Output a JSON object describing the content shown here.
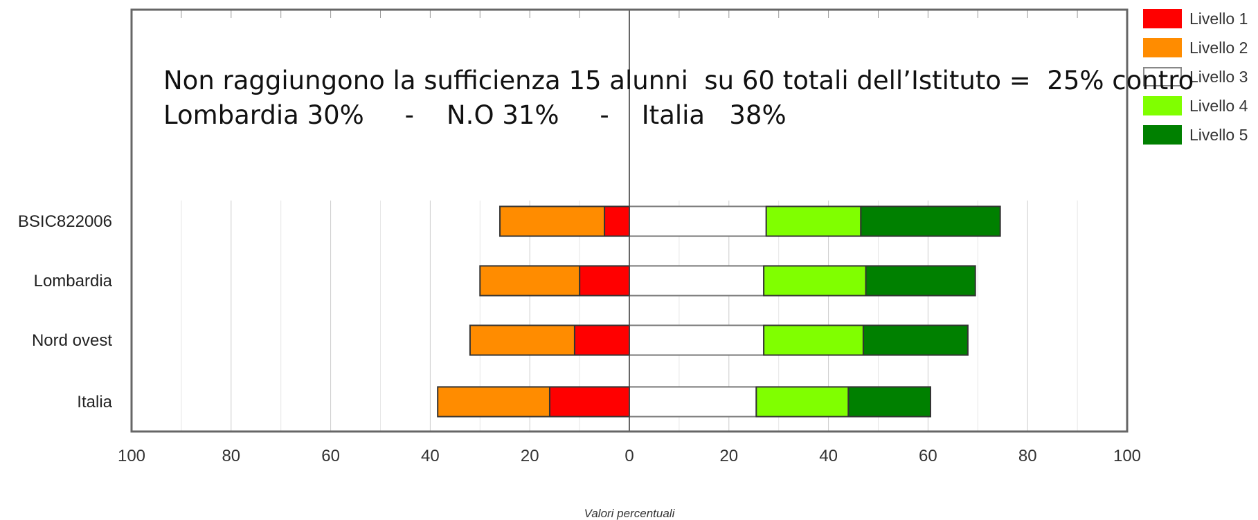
{
  "annotation": {
    "line1": "Non raggiungono la sufficienza 15 alunni  su 60 totali dell’Istituto =  25% contro",
    "line2": "Lombardia 30%     -    N.O 31%     -    Italia   38%"
  },
  "chart_data": {
    "type": "bar",
    "orientation": "horizontal",
    "stacked": "diverging",
    "xlabel": "Valori percentuali",
    "xlim": [
      -100,
      100
    ],
    "x_ticks": [
      100,
      80,
      60,
      40,
      20,
      0,
      20,
      40,
      60,
      80,
      100
    ],
    "grid": true,
    "legend_position": "top-right",
    "categories": [
      "BSIC822006",
      "Lombardia",
      "Nord ovest",
      "Italia"
    ],
    "series": [
      {
        "name": "Livello 1",
        "side": "negative",
        "color": "#ff0000",
        "values": [
          5,
          10,
          11,
          16
        ]
      },
      {
        "name": "Livello 2",
        "side": "negative",
        "color": "#ff8c00",
        "values": [
          21,
          20,
          21,
          22.5
        ]
      },
      {
        "name": "Livello 3",
        "side": "positive",
        "color": "#ffffff",
        "values": [
          27.5,
          27,
          27,
          25.5
        ]
      },
      {
        "name": "Livello 4",
        "side": "positive",
        "color": "#80ff00",
        "values": [
          19,
          20.5,
          20,
          18.5
        ]
      },
      {
        "name": "Livello 5",
        "side": "positive",
        "color": "#008000",
        "values": [
          28,
          22,
          21,
          16.5
        ]
      }
    ]
  }
}
